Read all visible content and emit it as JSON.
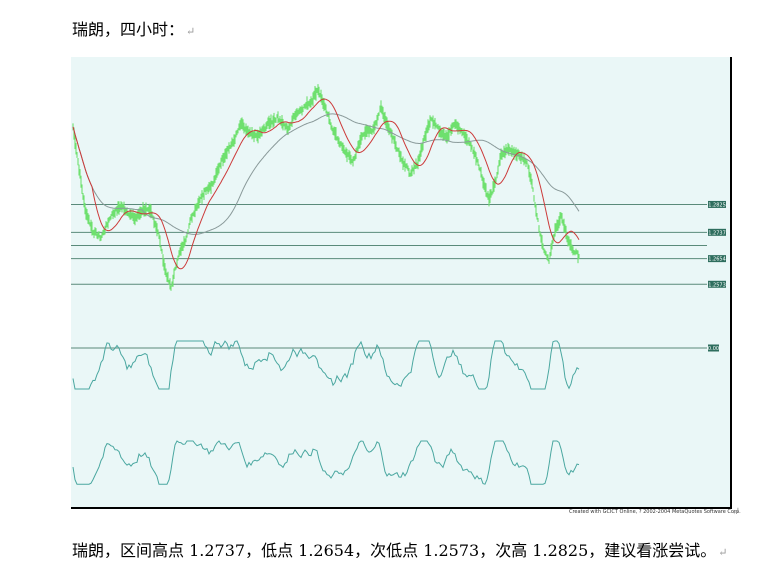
{
  "document": {
    "heading": "瑞朗，四小时：",
    "summary": "瑞朗，区间高点 1.2737，低点 1.2654，次低点 1.2573，次高 1.2825，建议看涨尝试。",
    "paragraph_mark": "↵",
    "credit": "Created with GCICT Online, ? 2002-2004 MetaQuotes Software Corp."
  },
  "colors": {
    "background": "#eaf7f7",
    "price": "#6ee06e",
    "fast_ma": "#cc3a3a",
    "slow_ma": "#8a9a9a",
    "level_line": "#5a8a7a",
    "level_tag": "#2e6e5e",
    "oscillator": "#4aa7a0"
  },
  "chart_data": [
    {
      "type": "line",
      "panel": "price",
      "y_levels": [
        {
          "value": 1.2825,
          "label": "1.2825"
        },
        {
          "value": 1.2737,
          "label": "1.2737"
        },
        {
          "value": 1.2654,
          "label": "1.2654"
        },
        {
          "value": 1.2573,
          "label": "1.2573"
        }
      ],
      "ylim": [
        1.2495,
        1.3243
      ],
      "price_anchors": [
        [
          0,
          1.307
        ],
        [
          5,
          1.296
        ],
        [
          12,
          1.281
        ],
        [
          20,
          1.274
        ],
        [
          28,
          1.272
        ],
        [
          38,
          1.279
        ],
        [
          48,
          1.282
        ],
        [
          55,
          1.28
        ],
        [
          62,
          1.278
        ],
        [
          70,
          1.281
        ],
        [
          78,
          1.28
        ],
        [
          85,
          1.274
        ],
        [
          92,
          1.262
        ],
        [
          98,
          1.256
        ],
        [
          105,
          1.266
        ],
        [
          112,
          1.271
        ],
        [
          118,
          1.278
        ],
        [
          125,
          1.283
        ],
        [
          132,
          1.287
        ],
        [
          140,
          1.289
        ],
        [
          148,
          1.296
        ],
        [
          155,
          1.3
        ],
        [
          160,
          1.302
        ],
        [
          168,
          1.308
        ],
        [
          175,
          1.305
        ],
        [
          185,
          1.304
        ],
        [
          195,
          1.308
        ],
        [
          205,
          1.31
        ],
        [
          215,
          1.306
        ],
        [
          222,
          1.311
        ],
        [
          230,
          1.313
        ],
        [
          238,
          1.315
        ],
        [
          245,
          1.319
        ],
        [
          252,
          1.313
        ],
        [
          260,
          1.306
        ],
        [
          270,
          1.3
        ],
        [
          280,
          1.296
        ],
        [
          290,
          1.305
        ],
        [
          300,
          1.306
        ],
        [
          308,
          1.313
        ],
        [
          314,
          1.308
        ],
        [
          322,
          1.302
        ],
        [
          330,
          1.296
        ],
        [
          338,
          1.292
        ],
        [
          345,
          1.296
        ],
        [
          352,
          1.304
        ],
        [
          358,
          1.31
        ],
        [
          366,
          1.306
        ],
        [
          374,
          1.304
        ],
        [
          382,
          1.308
        ],
        [
          390,
          1.305
        ],
        [
          398,
          1.301
        ],
        [
          405,
          1.296
        ],
        [
          410,
          1.29
        ],
        [
          416,
          1.284
        ],
        [
          422,
          1.289
        ],
        [
          428,
          1.298
        ],
        [
          435,
          1.3
        ],
        [
          442,
          1.299
        ],
        [
          450,
          1.297
        ],
        [
          455,
          1.295
        ],
        [
          460,
          1.287
        ],
        [
          465,
          1.277
        ],
        [
          470,
          1.269
        ],
        [
          476,
          1.265
        ],
        [
          482,
          1.274
        ],
        [
          488,
          1.279
        ],
        [
          494,
          1.272
        ],
        [
          500,
          1.268
        ],
        [
          507,
          1.266
        ]
      ],
      "noise_amplitude": 0.0012,
      "fast_ma_period": 20,
      "slow_ma_period": 70
    },
    {
      "type": "line",
      "panel": "oscillator_1",
      "reference_level": {
        "label": "0.00"
      }
    },
    {
      "type": "line",
      "panel": "oscillator_2"
    }
  ]
}
